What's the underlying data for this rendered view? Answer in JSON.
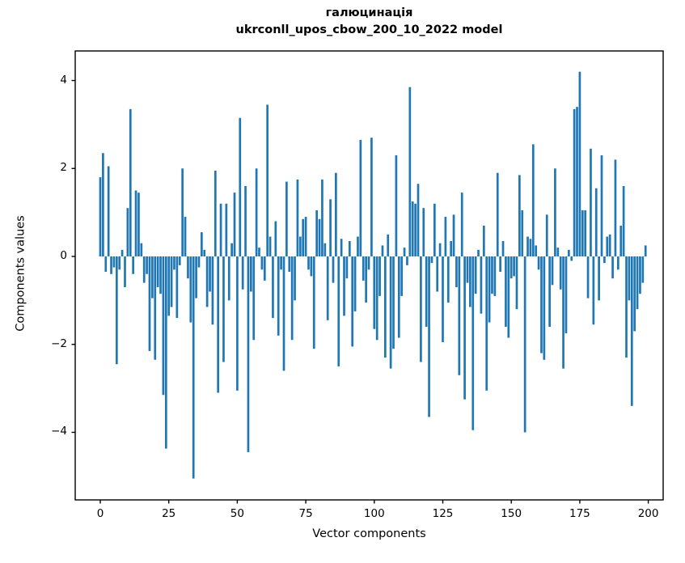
{
  "figure": {
    "title_line1": "галюцинація",
    "title_line2": "ukrconll_upos_cbow_200_10_2022 model"
  },
  "chart_data": {
    "type": "bar",
    "title": "галюцинація",
    "subtitle": "ukrconll_upos_cbow_200_10_2022 model",
    "xlabel": "Vector components",
    "ylabel": "Components values",
    "bar_color": "#1f77b4",
    "grid": false,
    "legend_position": "none",
    "x_ticks": [
      0,
      25,
      50,
      75,
      100,
      125,
      150,
      175,
      200
    ],
    "y_ticks": [
      -4,
      -2,
      0,
      2,
      4
    ],
    "xlim": [
      -9.2,
      205.5
    ],
    "ylim": [
      -5.55,
      4.67
    ],
    "n_components": 200,
    "values": [
      1.8,
      2.35,
      -0.35,
      2.05,
      -0.4,
      -0.25,
      -2.45,
      -0.3,
      0.15,
      -0.7,
      1.1,
      3.35,
      -0.4,
      1.5,
      1.45,
      0.3,
      -0.6,
      -0.4,
      -2.15,
      -0.95,
      -2.35,
      -0.7,
      -0.85,
      -3.15,
      -4.37,
      -1.35,
      -1.15,
      -0.3,
      -1.4,
      -0.2,
      2.0,
      0.9,
      -0.5,
      -1.5,
      -5.05,
      -0.95,
      -0.25,
      0.55,
      0.15,
      -1.15,
      -0.8,
      -1.55,
      1.95,
      -3.1,
      1.2,
      -2.4,
      1.2,
      -1.0,
      0.3,
      1.45,
      -3.05,
      3.15,
      -0.75,
      1.6,
      -4.45,
      -0.8,
      -1.9,
      2.0,
      0.2,
      -0.3,
      -0.55,
      3.45,
      0.45,
      -1.4,
      0.8,
      -1.8,
      -0.3,
      -2.6,
      1.7,
      -0.35,
      -1.9,
      -1.0,
      1.75,
      0.45,
      0.85,
      0.9,
      -0.3,
      -0.45,
      -2.1,
      1.05,
      0.85,
      1.75,
      0.3,
      -1.45,
      1.3,
      -0.6,
      1.9,
      -2.5,
      0.4,
      -1.35,
      -0.5,
      0.35,
      -2.05,
      -1.25,
      0.45,
      2.65,
      -0.55,
      -1.05,
      -0.3,
      2.7,
      -1.65,
      -1.9,
      -0.9,
      0.25,
      -2.3,
      0.5,
      -2.55,
      -2.1,
      2.3,
      -1.85,
      -0.9,
      0.2,
      -0.2,
      3.85,
      1.25,
      1.2,
      1.65,
      -2.4,
      1.1,
      -1.6,
      -3.65,
      -0.15,
      1.2,
      -0.8,
      0.3,
      -1.95,
      0.9,
      -1.05,
      0.35,
      0.95,
      -0.7,
      -2.7,
      1.45,
      -3.25,
      -0.6,
      -1.15,
      -3.95,
      -0.85,
      0.15,
      -1.3,
      0.7,
      -3.05,
      -1.5,
      -0.85,
      -0.9,
      1.9,
      -0.35,
      0.35,
      -1.6,
      -1.85,
      -0.5,
      -0.45,
      -1.2,
      1.85,
      1.05,
      -4.0,
      0.45,
      0.4,
      2.55,
      0.25,
      -0.3,
      -2.2,
      -2.35,
      0.95,
      -1.6,
      -0.65,
      2.0,
      0.2,
      -0.75,
      -2.55,
      -1.75,
      0.15,
      -0.1,
      3.35,
      3.4,
      4.2,
      1.05,
      1.05,
      -0.95,
      2.45,
      -1.55,
      1.55,
      -1.0,
      2.3,
      -0.15,
      0.45,
      0.5,
      -0.5,
      2.2,
      -0.3,
      0.7,
      1.6,
      -2.3,
      -1.0,
      -3.4,
      -1.7,
      -1.2,
      -0.85,
      -0.6,
      0.25
    ]
  }
}
